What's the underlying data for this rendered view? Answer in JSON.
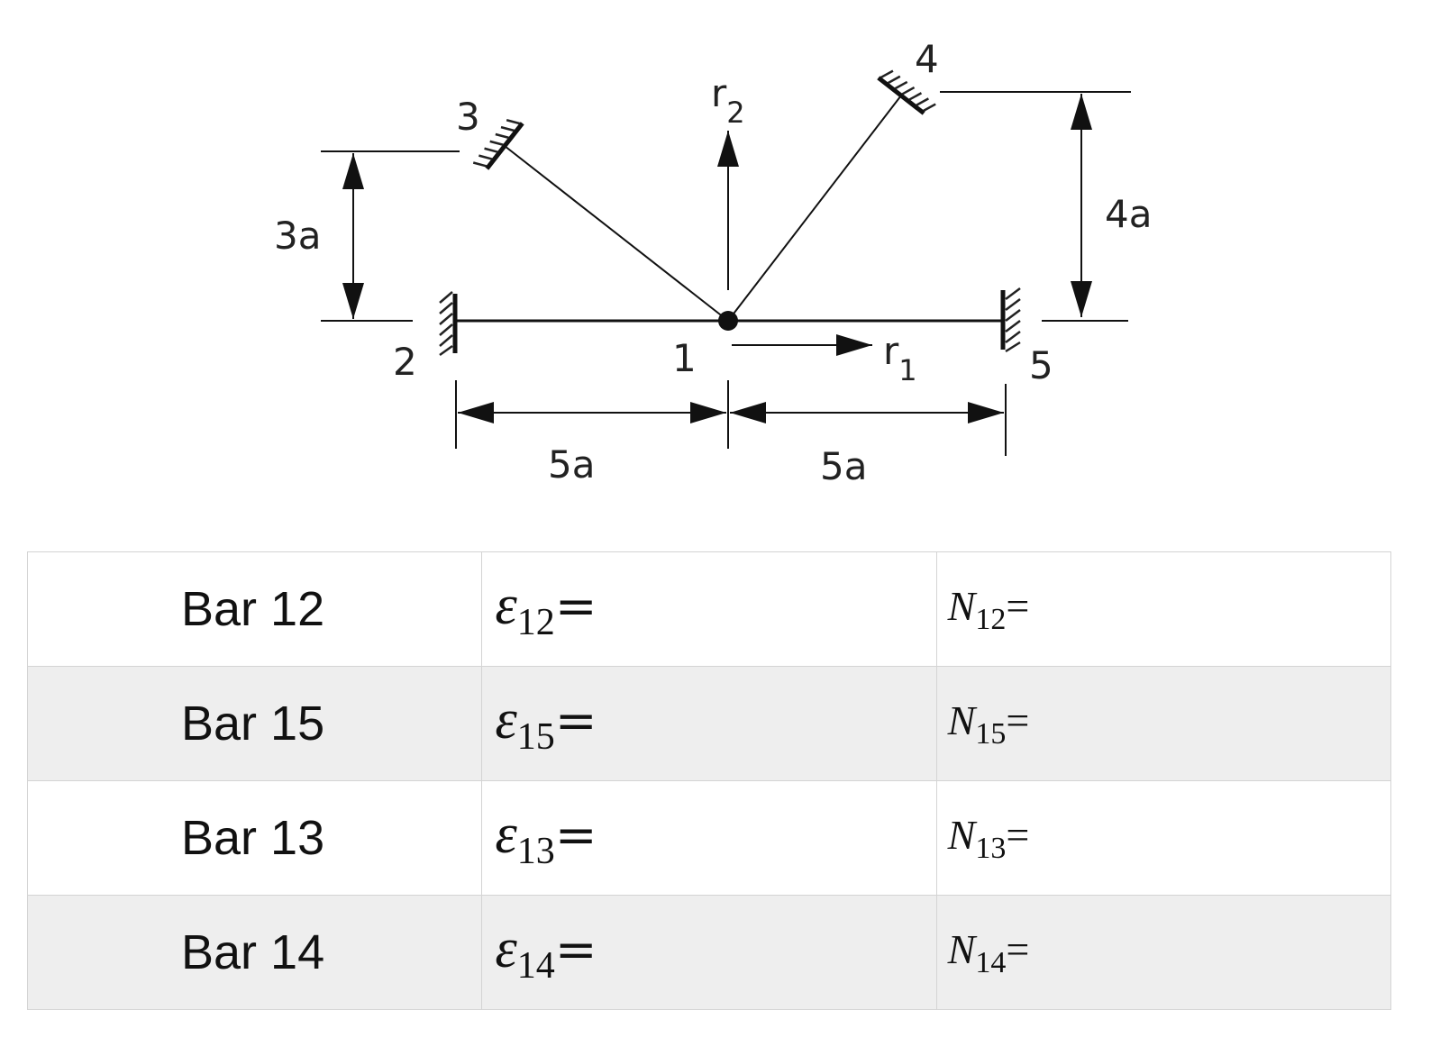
{
  "diagram": {
    "nodes": {
      "n1": "1",
      "n2": "2",
      "n3": "3",
      "n4": "4",
      "n5": "5"
    },
    "forces": {
      "r1": {
        "base": "r",
        "sub": "1"
      },
      "r2": {
        "base": "r",
        "sub": "2"
      }
    },
    "dimensions": {
      "left_height": "3a",
      "right_height": "4a",
      "left_span": "5a",
      "right_span": "5a"
    }
  },
  "table": {
    "rows": [
      {
        "bar": "Bar 12",
        "strain_sub": "12",
        "force_sub": "12"
      },
      {
        "bar": "Bar 15",
        "strain_sub": "15",
        "force_sub": "15"
      },
      {
        "bar": "Bar 13",
        "strain_sub": "13",
        "force_sub": "13"
      },
      {
        "bar": "Bar 14",
        "strain_sub": "14",
        "force_sub": "14"
      }
    ],
    "strain_symbol": "ε",
    "force_symbol": "N",
    "equals": "="
  }
}
